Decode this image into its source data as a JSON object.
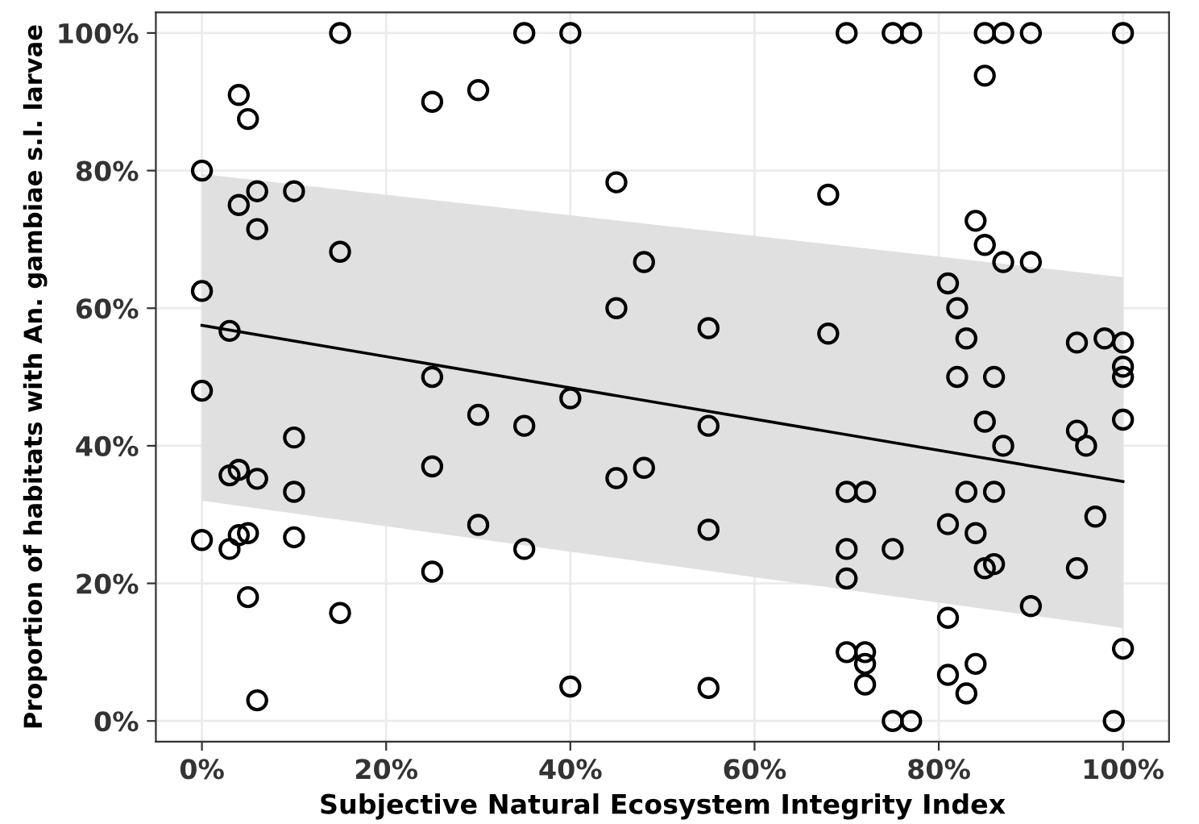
{
  "chart_data": {
    "type": "scatter",
    "xlabel": "Subjective Natural Ecosystem Integrity Index",
    "ylabel": "Proportion of habitats with An. gambiae s.l. larvae",
    "grid": true,
    "xlim": [
      -5,
      105
    ],
    "ylim": [
      -3,
      103
    ],
    "xticks": [
      {
        "value": 0,
        "label": "0%"
      },
      {
        "value": 20,
        "label": "20%"
      },
      {
        "value": 40,
        "label": "40%"
      },
      {
        "value": 60,
        "label": "60%"
      },
      {
        "value": 80,
        "label": "80%"
      },
      {
        "value": 100,
        "label": "100%"
      }
    ],
    "yticks": [
      {
        "value": 0,
        "label": "0%"
      },
      {
        "value": 20,
        "label": "20%"
      },
      {
        "value": 40,
        "label": "40%"
      },
      {
        "value": 60,
        "label": "60%"
      },
      {
        "value": 80,
        "label": "80%"
      },
      {
        "value": 100,
        "label": "100%"
      }
    ],
    "series": [
      {
        "color": "#000000",
        "marker": "circle",
        "x": [
          0,
          0,
          0,
          0,
          3,
          3,
          3,
          4,
          4,
          4,
          4,
          5,
          5,
          5,
          6,
          6,
          6,
          6,
          10,
          10,
          10,
          10,
          15,
          15,
          15,
          25,
          25,
          25,
          25,
          30,
          30,
          30,
          35,
          35,
          35,
          40,
          40,
          40,
          45,
          45,
          45,
          48,
          48,
          55,
          55,
          55,
          55,
          68,
          68,
          70,
          70,
          70,
          70,
          70,
          72,
          72,
          72,
          72,
          75,
          75,
          75,
          77,
          77,
          81,
          81,
          81,
          81,
          82,
          82,
          83,
          83,
          83,
          84,
          84,
          84,
          85,
          85,
          85,
          85,
          85,
          86,
          86,
          86,
          87,
          87,
          87,
          90,
          90,
          90,
          95,
          95,
          95,
          96,
          97,
          98,
          99,
          100,
          100,
          100,
          100,
          100,
          100
        ],
        "values": [
          80,
          62.5,
          48,
          26.3,
          56.7,
          35.7,
          25,
          91,
          75,
          36.5,
          27,
          87.5,
          27.3,
          18,
          77,
          71.5,
          35.2,
          3,
          77,
          41.2,
          33.3,
          26.7,
          100,
          68.2,
          15.7,
          90,
          50,
          37,
          21.7,
          91.7,
          44.5,
          28.5,
          100,
          42.9,
          25,
          100,
          46.9,
          5,
          78.3,
          60,
          35.3,
          66.7,
          36.8,
          57.1,
          42.9,
          27.8,
          4.8,
          76.5,
          56.3,
          100,
          33.3,
          25,
          20.7,
          10,
          33.3,
          10,
          8.3,
          5.3,
          100,
          25,
          0,
          100,
          0,
          63.6,
          28.6,
          15,
          6.7,
          60,
          50,
          55.6,
          33.3,
          4,
          72.7,
          27.3,
          8.3,
          100,
          93.8,
          69.2,
          43.5,
          22.2,
          50,
          33.3,
          22.8,
          100,
          66.7,
          40,
          100,
          66.7,
          16.7,
          55,
          42.2,
          22.2,
          40,
          29.7,
          55.6,
          0,
          100,
          55,
          51.5,
          50,
          43.8,
          10.5
        ]
      },
      {
        "type": "line",
        "color": "#000000",
        "x": [
          0,
          100
        ],
        "values": [
          57.5,
          34.8
        ],
        "lower": [
          32,
          13.5
        ],
        "upper": [
          79.5,
          64.5
        ]
      }
    ]
  }
}
